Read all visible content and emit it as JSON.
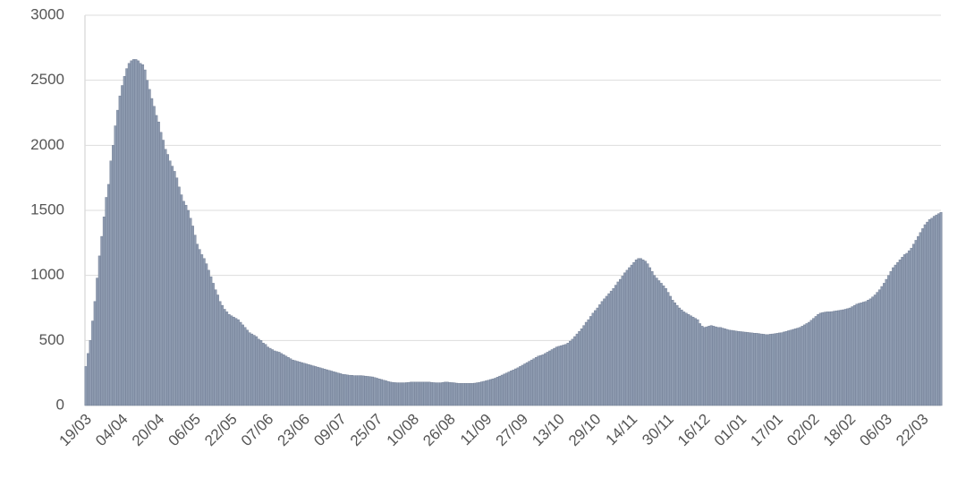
{
  "chart_data": {
    "type": "bar",
    "categories": [
      "19/03",
      null,
      null,
      null,
      null,
      null,
      null,
      null,
      null,
      null,
      null,
      null,
      null,
      null,
      null,
      null,
      "04/04",
      null,
      null,
      null,
      null,
      null,
      null,
      null,
      null,
      null,
      null,
      null,
      null,
      null,
      null,
      null,
      "20/04",
      null,
      null,
      null,
      null,
      null,
      null,
      null,
      null,
      null,
      null,
      null,
      null,
      null,
      null,
      null,
      "06/05",
      null,
      null,
      null,
      null,
      null,
      null,
      null,
      null,
      null,
      null,
      null,
      null,
      null,
      null,
      null,
      "22/05",
      null,
      null,
      null,
      null,
      null,
      null,
      null,
      null,
      null,
      null,
      null,
      null,
      null,
      null,
      null,
      "07/06",
      null,
      null,
      null,
      null,
      null,
      null,
      null,
      null,
      null,
      null,
      null,
      null,
      null,
      null,
      null,
      "23/06",
      null,
      null,
      null,
      null,
      null,
      null,
      null,
      null,
      null,
      null,
      null,
      null,
      null,
      null,
      null,
      "09/07",
      null,
      null,
      null,
      null,
      null,
      null,
      null,
      null,
      null,
      null,
      null,
      null,
      null,
      null,
      null,
      "25/07",
      null,
      null,
      null,
      null,
      null,
      null,
      null,
      null,
      null,
      null,
      null,
      null,
      null,
      null,
      null,
      "10/08",
      null,
      null,
      null,
      null,
      null,
      null,
      null,
      null,
      null,
      null,
      null,
      null,
      null,
      null,
      null,
      "26/08",
      null,
      null,
      null,
      null,
      null,
      null,
      null,
      null,
      null,
      null,
      null,
      null,
      null,
      null,
      null,
      "11/09",
      null,
      null,
      null,
      null,
      null,
      null,
      null,
      null,
      null,
      null,
      null,
      null,
      null,
      null,
      null,
      "27/09",
      null,
      null,
      null,
      null,
      null,
      null,
      null,
      null,
      null,
      null,
      null,
      null,
      null,
      null,
      null,
      "13/10",
      null,
      null,
      null,
      null,
      null,
      null,
      null,
      null,
      null,
      null,
      null,
      null,
      null,
      null,
      null,
      "29/10",
      null,
      null,
      null,
      null,
      null,
      null,
      null,
      null,
      null,
      null,
      null,
      null,
      null,
      null,
      null,
      "14/11",
      null,
      null,
      null,
      null,
      null,
      null,
      null,
      null,
      null,
      null,
      null,
      null,
      null,
      null,
      null,
      "30/11",
      null,
      null,
      null,
      null,
      null,
      null,
      null,
      null,
      null,
      null,
      null,
      null,
      null,
      null,
      null,
      "16/12",
      null,
      null,
      null,
      null,
      null,
      null,
      null,
      null,
      null,
      null,
      null,
      null,
      null,
      null,
      null,
      "01/01",
      null,
      null,
      null,
      null,
      null,
      null,
      null,
      null,
      null,
      null,
      null,
      null,
      null,
      null,
      null,
      "17/01",
      null,
      null,
      null,
      null,
      null,
      null,
      null,
      null,
      null,
      null,
      null,
      null,
      null,
      null,
      null,
      "02/02",
      null,
      null,
      null,
      null,
      null,
      null,
      null,
      null,
      null,
      null,
      null,
      null,
      null,
      null,
      null,
      "18/02",
      null,
      null,
      null,
      null,
      null,
      null,
      null,
      null,
      null,
      null,
      null,
      null,
      null,
      null,
      null,
      "06/03",
      null,
      null,
      null,
      null,
      null,
      null,
      null,
      null,
      null,
      null,
      null,
      null,
      null,
      null,
      null,
      "22/03",
      null,
      null,
      null,
      null,
      null,
      null,
      null,
      null
    ],
    "values": [
      300,
      400,
      500,
      650,
      800,
      980,
      1150,
      1300,
      1450,
      1600,
      1700,
      1880,
      2000,
      2150,
      2270,
      2380,
      2460,
      2530,
      2590,
      2630,
      2650,
      2660,
      2660,
      2650,
      2630,
      2620,
      2580,
      2500,
      2430,
      2360,
      2300,
      2230,
      2180,
      2100,
      2040,
      1970,
      1930,
      1880,
      1840,
      1800,
      1750,
      1680,
      1620,
      1570,
      1540,
      1500,
      1440,
      1380,
      1310,
      1240,
      1200,
      1160,
      1130,
      1090,
      1040,
      990,
      940,
      890,
      850,
      800,
      770,
      740,
      720,
      700,
      690,
      680,
      670,
      660,
      640,
      620,
      600,
      580,
      560,
      550,
      540,
      530,
      510,
      500,
      480,
      470,
      450,
      440,
      430,
      420,
      415,
      410,
      400,
      390,
      380,
      370,
      360,
      350,
      345,
      340,
      335,
      330,
      325,
      320,
      315,
      310,
      305,
      300,
      295,
      290,
      285,
      280,
      275,
      270,
      265,
      260,
      255,
      250,
      245,
      240,
      238,
      235,
      233,
      232,
      230,
      230,
      230,
      230,
      228,
      226,
      224,
      222,
      220,
      215,
      210,
      205,
      200,
      195,
      190,
      185,
      180,
      178,
      176,
      175,
      175,
      175,
      175,
      176,
      178,
      180,
      180,
      180,
      180,
      180,
      180,
      180,
      180,
      180,
      178,
      176,
      175,
      175,
      175,
      178,
      180,
      180,
      178,
      176,
      175,
      172,
      170,
      170,
      170,
      170,
      170,
      170,
      170,
      172,
      175,
      178,
      182,
      186,
      190,
      195,
      200,
      205,
      210,
      218,
      226,
      234,
      242,
      250,
      258,
      266,
      274,
      282,
      290,
      300,
      310,
      320,
      330,
      340,
      350,
      360,
      370,
      380,
      385,
      390,
      400,
      410,
      420,
      430,
      440,
      450,
      455,
      460,
      465,
      470,
      480,
      495,
      510,
      530,
      550,
      570,
      590,
      615,
      640,
      660,
      685,
      710,
      730,
      750,
      775,
      800,
      820,
      840,
      860,
      880,
      900,
      925,
      950,
      970,
      995,
      1020,
      1040,
      1060,
      1080,
      1100,
      1120,
      1130,
      1130,
      1120,
      1110,
      1090,
      1060,
      1030,
      1000,
      980,
      960,
      940,
      920,
      900,
      870,
      840,
      810,
      790,
      770,
      750,
      735,
      720,
      710,
      700,
      690,
      680,
      670,
      660,
      630,
      610,
      600,
      605,
      610,
      615,
      610,
      605,
      600,
      600,
      595,
      590,
      585,
      580,
      578,
      575,
      572,
      570,
      568,
      566,
      564,
      562,
      560,
      558,
      556,
      555,
      553,
      550,
      548,
      545,
      545,
      548,
      550,
      552,
      555,
      558,
      560,
      565,
      570,
      575,
      580,
      585,
      590,
      595,
      600,
      610,
      620,
      630,
      640,
      655,
      670,
      685,
      700,
      710,
      715,
      718,
      720,
      720,
      722,
      725,
      728,
      730,
      733,
      736,
      740,
      745,
      750,
      760,
      770,
      780,
      785,
      790,
      795,
      800,
      810,
      820,
      835,
      850,
      870,
      890,
      915,
      940,
      970,
      1000,
      1030,
      1060,
      1080,
      1100,
      1120,
      1140,
      1160,
      1170,
      1190,
      1210,
      1240,
      1270,
      1300,
      1330,
      1360,
      1390,
      1410,
      1430,
      1440,
      1455,
      1465,
      1475,
      1485
    ],
    "color": "#8e9bb0",
    "edge_color": "#6b7890",
    "ylim": [
      0,
      3000
    ],
    "yticks": [
      0,
      500,
      1000,
      1500,
      2000,
      2500,
      3000
    ],
    "grid": true
  }
}
